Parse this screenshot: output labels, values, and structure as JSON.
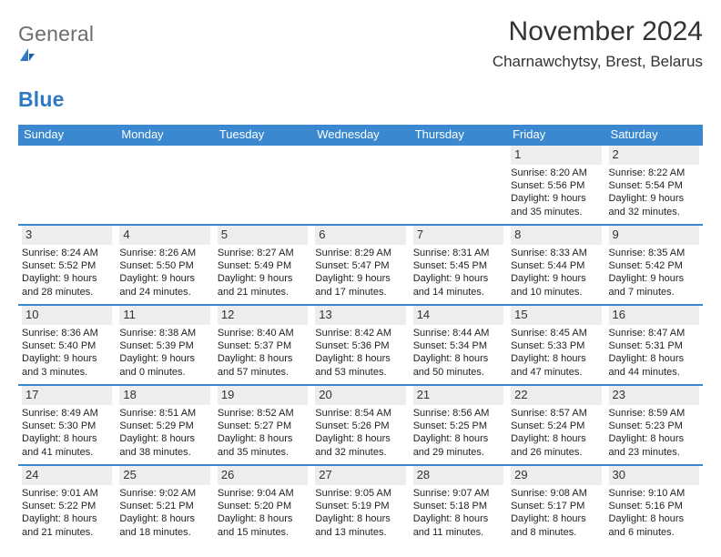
{
  "logo": {
    "general": "General",
    "blue": "Blue"
  },
  "header": {
    "title": "November 2024",
    "location": "Charnawchytsy, Brest, Belarus"
  },
  "colors": {
    "header_bg": "#3a88cf",
    "header_text": "#ffffff",
    "daynum_bg": "#ecedee",
    "row_divider": "#3a88cf",
    "logo_gray": "#6d6d6d",
    "logo_blue": "#2f78c3"
  },
  "calendar": {
    "day_names": [
      "Sunday",
      "Monday",
      "Tuesday",
      "Wednesday",
      "Thursday",
      "Friday",
      "Saturday"
    ],
    "weeks": [
      [
        null,
        null,
        null,
        null,
        null,
        {
          "n": "1",
          "sr": "8:20 AM",
          "ss": "5:56 PM",
          "dl": "9 hours and 35 minutes."
        },
        {
          "n": "2",
          "sr": "8:22 AM",
          "ss": "5:54 PM",
          "dl": "9 hours and 32 minutes."
        }
      ],
      [
        {
          "n": "3",
          "sr": "8:24 AM",
          "ss": "5:52 PM",
          "dl": "9 hours and 28 minutes."
        },
        {
          "n": "4",
          "sr": "8:26 AM",
          "ss": "5:50 PM",
          "dl": "9 hours and 24 minutes."
        },
        {
          "n": "5",
          "sr": "8:27 AM",
          "ss": "5:49 PM",
          "dl": "9 hours and 21 minutes."
        },
        {
          "n": "6",
          "sr": "8:29 AM",
          "ss": "5:47 PM",
          "dl": "9 hours and 17 minutes."
        },
        {
          "n": "7",
          "sr": "8:31 AM",
          "ss": "5:45 PM",
          "dl": "9 hours and 14 minutes."
        },
        {
          "n": "8",
          "sr": "8:33 AM",
          "ss": "5:44 PM",
          "dl": "9 hours and 10 minutes."
        },
        {
          "n": "9",
          "sr": "8:35 AM",
          "ss": "5:42 PM",
          "dl": "9 hours and 7 minutes."
        }
      ],
      [
        {
          "n": "10",
          "sr": "8:36 AM",
          "ss": "5:40 PM",
          "dl": "9 hours and 3 minutes."
        },
        {
          "n": "11",
          "sr": "8:38 AM",
          "ss": "5:39 PM",
          "dl": "9 hours and 0 minutes."
        },
        {
          "n": "12",
          "sr": "8:40 AM",
          "ss": "5:37 PM",
          "dl": "8 hours and 57 minutes."
        },
        {
          "n": "13",
          "sr": "8:42 AM",
          "ss": "5:36 PM",
          "dl": "8 hours and 53 minutes."
        },
        {
          "n": "14",
          "sr": "8:44 AM",
          "ss": "5:34 PM",
          "dl": "8 hours and 50 minutes."
        },
        {
          "n": "15",
          "sr": "8:45 AM",
          "ss": "5:33 PM",
          "dl": "8 hours and 47 minutes."
        },
        {
          "n": "16",
          "sr": "8:47 AM",
          "ss": "5:31 PM",
          "dl": "8 hours and 44 minutes."
        }
      ],
      [
        {
          "n": "17",
          "sr": "8:49 AM",
          "ss": "5:30 PM",
          "dl": "8 hours and 41 minutes."
        },
        {
          "n": "18",
          "sr": "8:51 AM",
          "ss": "5:29 PM",
          "dl": "8 hours and 38 minutes."
        },
        {
          "n": "19",
          "sr": "8:52 AM",
          "ss": "5:27 PM",
          "dl": "8 hours and 35 minutes."
        },
        {
          "n": "20",
          "sr": "8:54 AM",
          "ss": "5:26 PM",
          "dl": "8 hours and 32 minutes."
        },
        {
          "n": "21",
          "sr": "8:56 AM",
          "ss": "5:25 PM",
          "dl": "8 hours and 29 minutes."
        },
        {
          "n": "22",
          "sr": "8:57 AM",
          "ss": "5:24 PM",
          "dl": "8 hours and 26 minutes."
        },
        {
          "n": "23",
          "sr": "8:59 AM",
          "ss": "5:23 PM",
          "dl": "8 hours and 23 minutes."
        }
      ],
      [
        {
          "n": "24",
          "sr": "9:01 AM",
          "ss": "5:22 PM",
          "dl": "8 hours and 21 minutes."
        },
        {
          "n": "25",
          "sr": "9:02 AM",
          "ss": "5:21 PM",
          "dl": "8 hours and 18 minutes."
        },
        {
          "n": "26",
          "sr": "9:04 AM",
          "ss": "5:20 PM",
          "dl": "8 hours and 15 minutes."
        },
        {
          "n": "27",
          "sr": "9:05 AM",
          "ss": "5:19 PM",
          "dl": "8 hours and 13 minutes."
        },
        {
          "n": "28",
          "sr": "9:07 AM",
          "ss": "5:18 PM",
          "dl": "8 hours and 11 minutes."
        },
        {
          "n": "29",
          "sr": "9:08 AM",
          "ss": "5:17 PM",
          "dl": "8 hours and 8 minutes."
        },
        {
          "n": "30",
          "sr": "9:10 AM",
          "ss": "5:16 PM",
          "dl": "8 hours and 6 minutes."
        }
      ]
    ],
    "labels": {
      "sunrise": "Sunrise:",
      "sunset": "Sunset:",
      "daylight": "Daylight:"
    }
  }
}
